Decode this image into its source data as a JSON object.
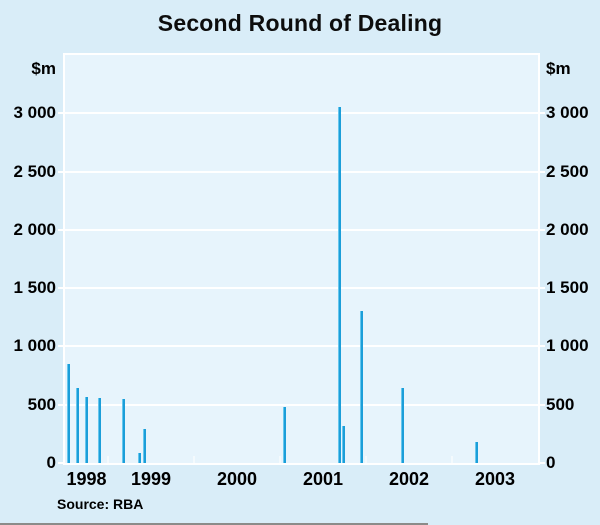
{
  "title": "Second Round of Dealing",
  "source_note": "Source: RBA",
  "axis": {
    "unit_left": "$m",
    "unit_right": "$m"
  },
  "colors": {
    "background": "#d9edf8",
    "plot_background": "#e7f4fc",
    "gridline": "#ffffff",
    "bar": "#1b9ed9",
    "bar_edge": "#66c7ee",
    "text": "#000000",
    "bottom_crop_line": "#8b8b89"
  },
  "chart_data": {
    "type": "bar",
    "title": "Second Round of Dealing",
    "ylabel": "$m",
    "ylim": [
      0,
      3500
    ],
    "yticks": [
      0,
      500,
      1000,
      1500,
      2000,
      2500,
      3000
    ],
    "ytick_labels": [
      "0",
      "500",
      "1 000",
      "1 500",
      "2 000",
      "2 500",
      "3 000"
    ],
    "grid": "horizontal-white",
    "x_range": [
      1998.5,
      2004.0
    ],
    "x_year_ticks": [
      1999,
      2000,
      2001,
      2002,
      2003
    ],
    "x_labels": [
      {
        "text": "1998",
        "x": 1998.75
      },
      {
        "text": "1999",
        "x": 1999.5
      },
      {
        "text": "2000",
        "x": 2000.5
      },
      {
        "text": "2001",
        "x": 2001.5
      },
      {
        "text": "2002",
        "x": 2002.5
      },
      {
        "text": "2003",
        "x": 2003.5
      }
    ],
    "bars": [
      {
        "x": 1998.54,
        "value": 850
      },
      {
        "x": 1998.65,
        "value": 645
      },
      {
        "x": 1998.75,
        "value": 570
      },
      {
        "x": 1998.9,
        "value": 560
      },
      {
        "x": 1999.18,
        "value": 545
      },
      {
        "x": 1999.37,
        "value": 85
      },
      {
        "x": 1999.43,
        "value": 290
      },
      {
        "x": 2001.05,
        "value": 480
      },
      {
        "x": 2001.69,
        "value": 3050
      },
      {
        "x": 2001.74,
        "value": 320
      },
      {
        "x": 2001.95,
        "value": 1300
      },
      {
        "x": 2002.42,
        "value": 640
      },
      {
        "x": 2003.28,
        "value": 180
      }
    ]
  }
}
